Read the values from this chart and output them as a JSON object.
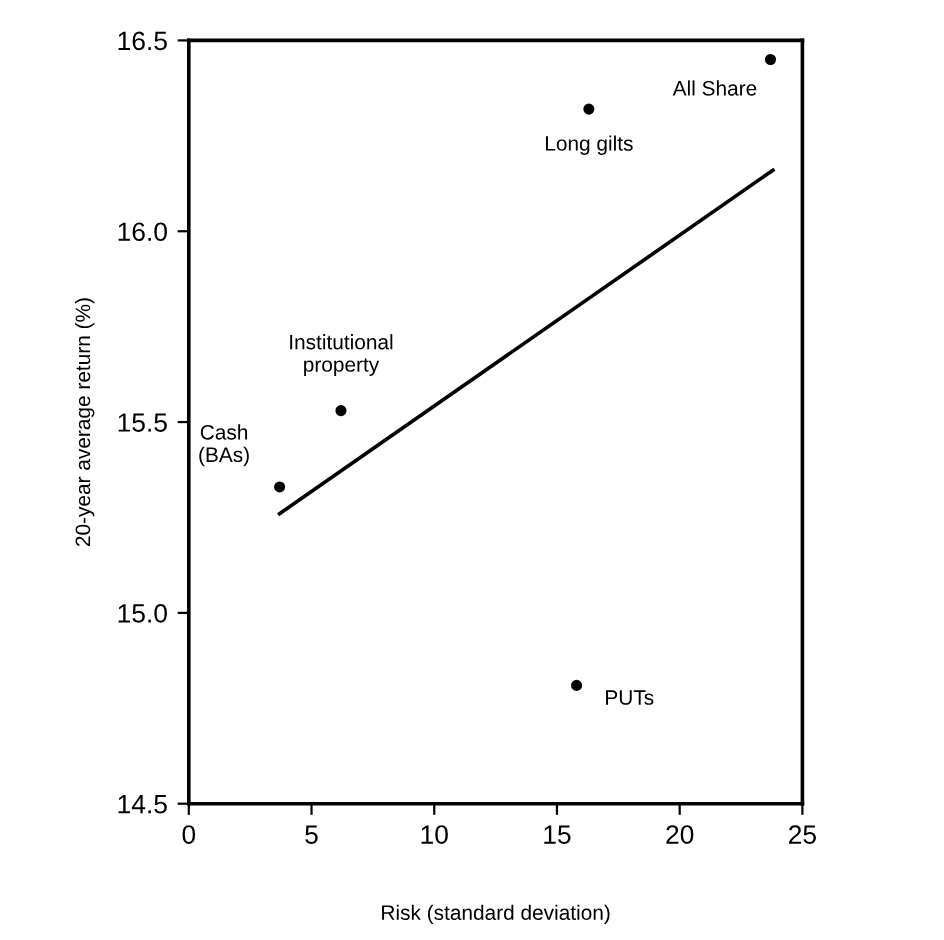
{
  "chart_data": {
    "type": "scatter",
    "xlabel": "Risk (standard deviation)",
    "ylabel": "20-year average return (%)",
    "series": [
      {
        "marker": "circle",
        "color": "#000000",
        "x": [
          3.7,
          6.2,
          16.3,
          23.7,
          15.8
        ],
        "values": [
          15.33,
          15.53,
          16.32,
          16.45,
          14.81
        ]
      },
      {
        "type": "line",
        "marker": "none",
        "color": "#000000",
        "x": [
          3.7,
          23.8
        ],
        "values": [
          15.26,
          16.16
        ]
      }
    ],
    "annotations": [
      {
        "text": "Cash\n(BAs)",
        "x": 3.7,
        "y": 15.33
      },
      {
        "text": "Institutional\nproperty",
        "x": 6.2,
        "y": 15.53
      },
      {
        "text": "Long gilts",
        "x": 16.3,
        "y": 16.32
      },
      {
        "text": "All Share",
        "x": 23.7,
        "y": 16.45
      },
      {
        "text": "PUTs",
        "x": 15.8,
        "y": 14.81
      }
    ],
    "xlim": [
      0,
      25
    ],
    "xticks": [
      0,
      5,
      10,
      15,
      20,
      25
    ],
    "ylim": [
      14.5,
      16.5
    ],
    "yticks": [
      {
        "value": 14.5,
        "label": "14.5"
      },
      {
        "value": 15,
        "label": "15.0"
      },
      {
        "value": 15.5,
        "label": "15.5"
      },
      {
        "value": 16,
        "label": "16.0"
      },
      {
        "value": 16.5,
        "label": "16.5"
      }
    ],
    "grid": false,
    "legend": false
  }
}
